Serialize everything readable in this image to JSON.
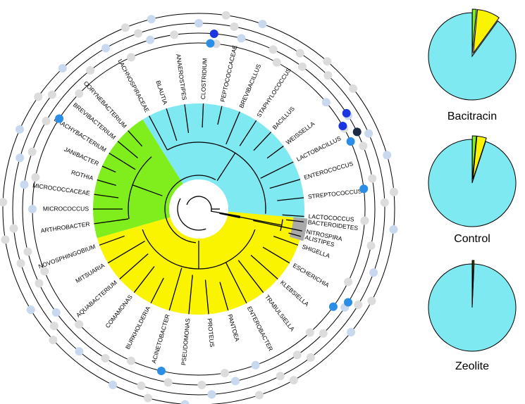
{
  "tree": {
    "colors": {
      "firmicutes": "#7fe9f2",
      "actinobacteria": "#80ee1c",
      "proteobacteria": "#fbf400",
      "bacteroidetes": "#a9a9a9",
      "branch": "#000000",
      "ring": "#000000"
    },
    "firmicutes_labels": [
      "LACHNOSPIRACEAE",
      "BLAUTIA",
      "ANAEROSTIPES",
      "CLOSTRIDIUM",
      "PEPTOCOCCACEAE",
      "BREVIBACILLUS",
      "STAPHYLOCOCCUS",
      "BACILLUS",
      "WEISSELLA",
      "LACTOBACILLUS",
      "ENTEROCOCCUS",
      "STREPTOCOCCUS",
      "LACTOCOCCUS"
    ],
    "actino_labels": [
      "ARTHROBACTER",
      "MICROCOCCUS",
      "MICROCOCCACEAE",
      "ROTHIA",
      "JANIBACTER",
      "BRACHYBACTERIUM",
      "BREVIBACTERIUM",
      "CORYNEBACTERIUM"
    ],
    "proteo_labels": [
      "NOVOSPHINGOBIUM",
      "MITSUARIA",
      "AQUABACTERIUM",
      "COMAMONAS",
      "BURKHOLDERIA",
      "ACINETOBACTER",
      "PSEUDOMONAS",
      "PROTEUS",
      "PANTOEA",
      "ENTEROBACTER",
      "TRABULSIELLA",
      "KLEBSIELLA",
      "ESCHERICHIA",
      "SHIGELLA"
    ],
    "bacteroidetes_labels": [
      "BACTEROIDETES",
      "ALISTIPES"
    ],
    "other_labels": [
      "NITROSPIRA"
    ],
    "dot_colors": {
      "absent": "#dcdcdc",
      "low": "#c8d8ef",
      "medium": "#2a8de6",
      "high": "#1a36e0",
      "very_high": "#1c2b45"
    }
  },
  "pies": [
    {
      "label": "Bacitracin",
      "slices": [
        {
          "group": "firmicutes",
          "value": 0.9,
          "color": "#7fe9f2"
        },
        {
          "group": "proteobacteria",
          "value": 0.085,
          "color": "#fbf400"
        },
        {
          "group": "actinobacteria",
          "value": 0.015,
          "color": "#80ee1c"
        }
      ],
      "tiny_text": "0.5"
    },
    {
      "label": "Control",
      "slices": [
        {
          "group": "firmicutes",
          "value": 0.95,
          "color": "#7fe9f2"
        },
        {
          "group": "proteobacteria",
          "value": 0.035,
          "color": "#fbf400"
        },
        {
          "group": "actinobacteria",
          "value": 0.015,
          "color": "#80ee1c"
        }
      ],
      "tiny_text": "0.5"
    },
    {
      "label": "Zeolite",
      "slices": [
        {
          "group": "firmicutes",
          "value": 0.993,
          "color": "#7fe9f2"
        },
        {
          "group": "proteobacteria",
          "value": 0.004,
          "color": "#fbf400"
        },
        {
          "group": "actinobacteria",
          "value": 0.003,
          "color": "#80ee1c"
        }
      ],
      "tiny_text": "0.5"
    }
  ]
}
